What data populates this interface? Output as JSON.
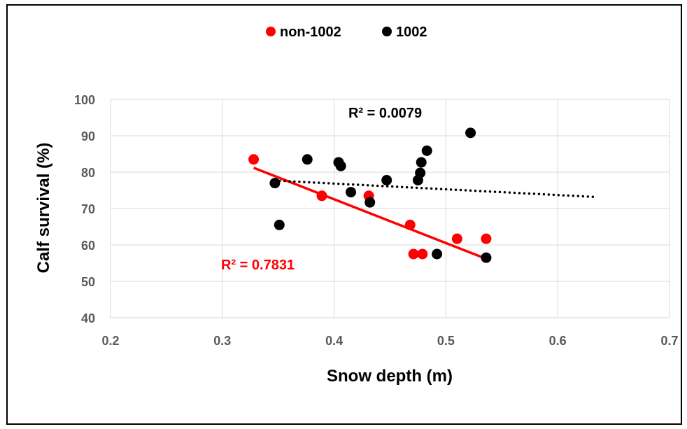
{
  "chart_data": {
    "type": "scatter",
    "xlabel": "Snow depth (m)",
    "ylabel": "Calf survival (%)",
    "xlim": [
      0.2,
      0.7
    ],
    "ylim": [
      40,
      100
    ],
    "x_ticks": [
      "0.2",
      "0.3",
      "0.4",
      "0.5",
      "0.6",
      "0.7"
    ],
    "y_ticks": [
      "40",
      "50",
      "60",
      "70",
      "80",
      "90",
      "100"
    ],
    "grid": true,
    "legend_position": "top-center",
    "series": [
      {
        "name": "non-1002",
        "color": "#ff0000",
        "points": [
          [
            0.328,
            83.5
          ],
          [
            0.389,
            73.5
          ],
          [
            0.431,
            73.5
          ],
          [
            0.468,
            65.5
          ],
          [
            0.471,
            57.5
          ],
          [
            0.479,
            57.5
          ],
          [
            0.51,
            61.7
          ],
          [
            0.536,
            61.7
          ]
        ],
        "trendline": {
          "style": "solid",
          "x": [
            0.328,
            0.536
          ],
          "y": [
            81.2,
            56.2
          ]
        },
        "r2_label": "R² = 0.7831"
      },
      {
        "name": "1002",
        "color": "#000000",
        "points": [
          [
            0.347,
            77.0
          ],
          [
            0.351,
            65.5
          ],
          [
            0.376,
            83.5
          ],
          [
            0.404,
            82.7
          ],
          [
            0.406,
            81.7
          ],
          [
            0.415,
            74.5
          ],
          [
            0.432,
            71.7
          ],
          [
            0.447,
            77.8
          ],
          [
            0.475,
            77.8
          ],
          [
            0.477,
            79.8
          ],
          [
            0.478,
            82.7
          ],
          [
            0.483,
            85.9
          ],
          [
            0.492,
            57.5
          ],
          [
            0.522,
            90.8
          ],
          [
            0.536,
            56.5
          ]
        ],
        "trendline": {
          "style": "dotted",
          "x": [
            0.347,
            0.633
          ],
          "y": [
            77.7,
            73.2
          ]
        },
        "r2_label": "R² = 0.0079"
      }
    ]
  }
}
